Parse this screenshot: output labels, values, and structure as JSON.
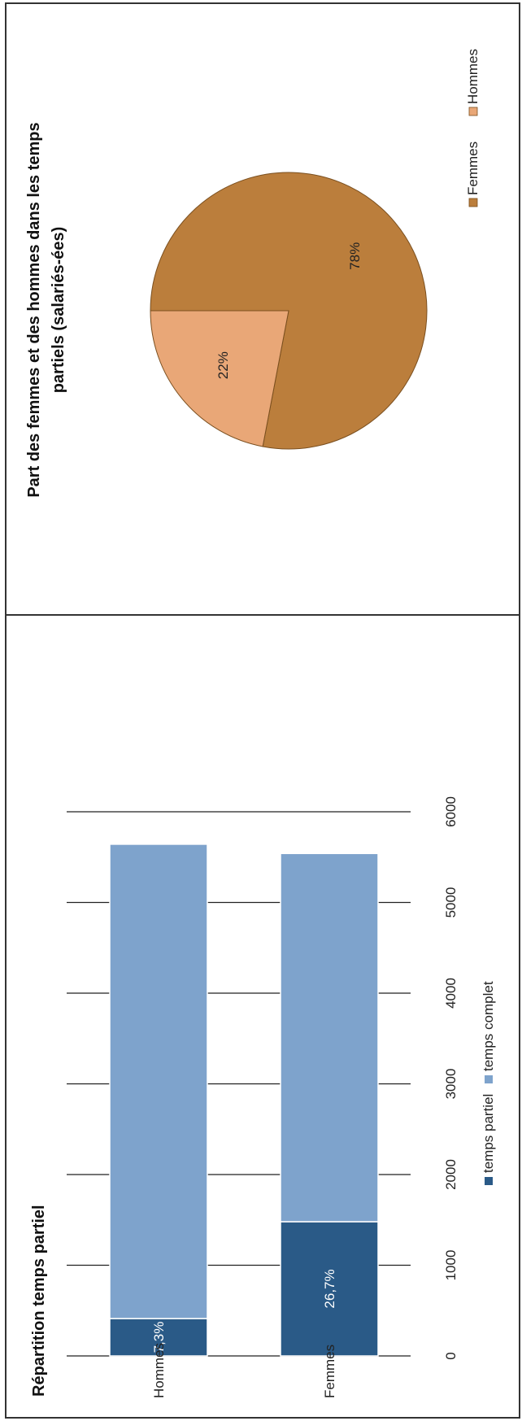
{
  "chart_data": [
    {
      "type": "bar",
      "stacked": true,
      "orientation": "horizontal",
      "title": "Répartition temps partiel",
      "categories": [
        "Hommes",
        "Femmes"
      ],
      "series": [
        {
          "name": "temps partiel",
          "values": [
            412,
            1480
          ],
          "labels": [
            "7,3%",
            "26,7%"
          ]
        },
        {
          "name": "temps complet",
          "values": [
            5230,
            4060
          ]
        }
      ],
      "xlim": [
        0,
        6000
      ],
      "ticks": [
        "0",
        "1000",
        "2000",
        "3000",
        "4000",
        "5000",
        "6000"
      ],
      "grid": true,
      "legend": "bottom",
      "colors": {
        "temps partiel": "#2a5a87",
        "temps complet": "#7ea3cc"
      }
    },
    {
      "type": "pie",
      "title": "Part des femmes et des hommes dans les temps partiels (salariés-ées)",
      "categories": [
        "Femmes",
        "Hommes"
      ],
      "values": [
        78,
        22
      ],
      "labels": [
        "78%",
        "22%"
      ],
      "legend": "right",
      "colors": {
        "Femmes": "#bb7e3c",
        "Hommes": "#e9a777"
      }
    }
  ]
}
